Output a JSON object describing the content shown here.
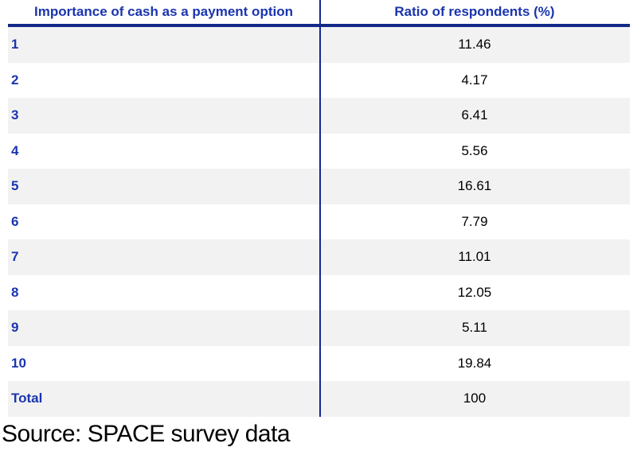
{
  "table": {
    "columns": [
      "Importance of cash as a payment option",
      "Ratio of respondents (%)"
    ],
    "rows": [
      {
        "label": "1",
        "value": "11.46"
      },
      {
        "label": "2",
        "value": "4.17"
      },
      {
        "label": "3",
        "value": "6.41"
      },
      {
        "label": "4",
        "value": "5.56"
      },
      {
        "label": "5",
        "value": "16.61"
      },
      {
        "label": "6",
        "value": "7.79"
      },
      {
        "label": "7",
        "value": "11.01"
      },
      {
        "label": "8",
        "value": "12.05"
      },
      {
        "label": "9",
        "value": "5.11"
      },
      {
        "label": "10",
        "value": "19.84"
      },
      {
        "label": "Total",
        "value": "100"
      }
    ]
  },
  "source": "Source: SPACE survey data",
  "colors": {
    "header_text": "#1b35ad",
    "rule": "#12298a",
    "row_shade": "#f2f2f2",
    "value_text": "#000000"
  },
  "chart_data": {
    "type": "table",
    "title": "Importance of cash as a payment option vs Ratio of respondents (%)",
    "columns": [
      "Importance of cash as a payment option",
      "Ratio of respondents (%)"
    ],
    "categories": [
      "1",
      "2",
      "3",
      "4",
      "5",
      "6",
      "7",
      "8",
      "9",
      "10",
      "Total"
    ],
    "values": [
      11.46,
      4.17,
      6.41,
      5.56,
      16.61,
      7.79,
      11.01,
      12.05,
      5.11,
      19.84,
      100
    ],
    "source": "Source: SPACE survey data",
    "layout": {
      "zebra_striping": true,
      "first_row_shaded": true,
      "column_divider": true,
      "header_rule": true
    }
  }
}
